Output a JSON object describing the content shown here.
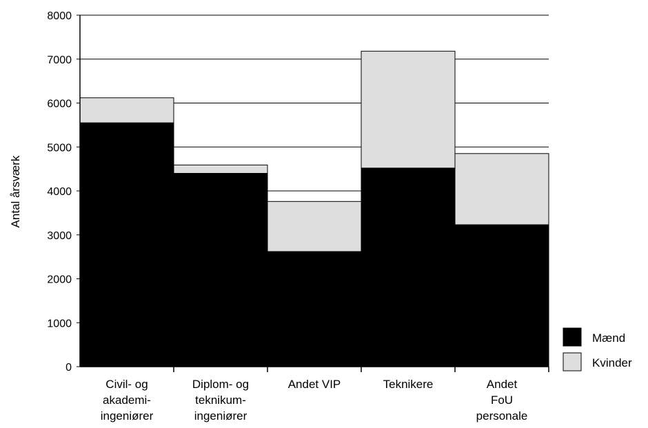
{
  "chart_data": {
    "type": "bar",
    "stacked": true,
    "ylabel": "Antal årsværk",
    "ylim": [
      0,
      8000
    ],
    "yticks": [
      0,
      1000,
      2000,
      3000,
      4000,
      5000,
      6000,
      7000,
      8000
    ],
    "grid": "horizontal",
    "legend_position": "bottom-right",
    "categories": [
      [
        "Civil- og",
        "akademi-",
        "ingeniører"
      ],
      [
        "Diplom- og",
        "teknikum-",
        "ingeniører"
      ],
      [
        "Andet VIP"
      ],
      [
        "Teknikere"
      ],
      [
        "Andet",
        "FoU",
        "personale"
      ]
    ],
    "series": [
      {
        "name": "Mænd",
        "color": "#000000",
        "values": [
          5550,
          4400,
          2620,
          4520,
          3230
        ]
      },
      {
        "name": "Kvinder",
        "color": "#dedede",
        "values": [
          570,
          190,
          1140,
          2660,
          1620
        ]
      }
    ]
  }
}
